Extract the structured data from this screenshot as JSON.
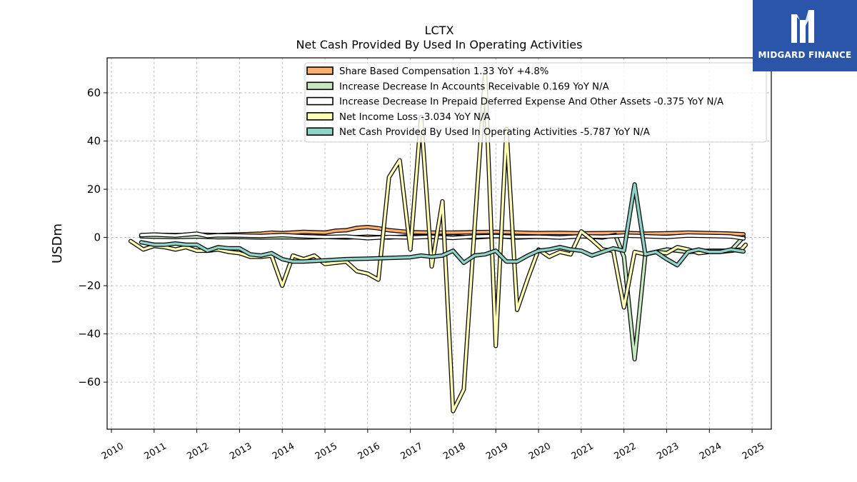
{
  "logo": {
    "text": "MIDGARD FINANCE",
    "bg_color": "#2a55a8"
  },
  "chart_data": {
    "type": "line",
    "title": "LCTX",
    "subtitle": "Net Cash Provided By Used In Operating Activities",
    "ylabel": "USDm",
    "xlabel": "",
    "xlim": [
      2009.9,
      2025.45
    ],
    "ylim": [
      -79.5,
      74.5
    ],
    "x_ticks": [
      2010,
      2011,
      2012,
      2013,
      2014,
      2015,
      2016,
      2017,
      2018,
      2019,
      2020,
      2021,
      2022,
      2023,
      2024,
      2025
    ],
    "y_ticks": [
      -60,
      -40,
      -20,
      0,
      20,
      40,
      60
    ],
    "y_tick_labels": [
      "−60",
      "−40",
      "−20",
      "0",
      "20",
      "40",
      "60"
    ],
    "grid": true,
    "legend_position": "top-right",
    "series": [
      {
        "name": "Share Based Compensation",
        "legend": "Share Based Compensation  1.33 YoY +4.8%",
        "color": "#fdae6b",
        "x": [
          2010.7,
          2011.0,
          2011.5,
          2012.0,
          2012.5,
          2013.0,
          2013.5,
          2013.75,
          2014.0,
          2014.5,
          2015.0,
          2015.25,
          2015.5,
          2015.75,
          2016.0,
          2016.25,
          2016.5,
          2016.75,
          2017.0,
          2017.5,
          2018.0,
          2018.5,
          2019.0,
          2019.5,
          2020.0,
          2020.5,
          2021.0,
          2021.5,
          2022.0,
          2022.5,
          2023.0,
          2023.5,
          2024.0,
          2024.5,
          2024.8
        ],
        "y": [
          0.9,
          1.1,
          1.0,
          1.2,
          1.0,
          1.3,
          1.6,
          2.0,
          1.8,
          2.3,
          2.0,
          2.8,
          3.0,
          4.0,
          4.3,
          3.8,
          3.0,
          2.6,
          2.2,
          2.0,
          2.0,
          2.2,
          2.3,
          2.0,
          1.8,
          1.9,
          1.7,
          1.8,
          1.9,
          1.6,
          1.7,
          2.0,
          1.8,
          1.6,
          1.33
        ]
      },
      {
        "name": "Increase Decrease In Accounts Receivable",
        "legend": "Increase Decrease In Accounts Receivable  0.169 YoY N/A",
        "color": "#c7e9c0",
        "x": [
          2010.7,
          2011.0,
          2011.5,
          2012.0,
          2012.5,
          2013.0,
          2013.5,
          2014.0,
          2014.5,
          2015.0,
          2015.5,
          2016.0,
          2016.5,
          2017.0,
          2017.5,
          2018.0,
          2018.5,
          2019.0,
          2019.5,
          2020.0,
          2020.5,
          2021.0,
          2021.5,
          2021.8,
          2022.0,
          2022.25,
          2022.5,
          2022.75,
          2023.0,
          2023.5,
          2024.0,
          2024.5,
          2024.8
        ],
        "y": [
          0.5,
          0.3,
          0.2,
          0.4,
          0.1,
          0.2,
          0.0,
          0.1,
          0.0,
          0.2,
          0.0,
          0.3,
          0.0,
          0.5,
          0.2,
          0.4,
          0.0,
          0.6,
          0.0,
          0.3,
          0.0,
          0.5,
          0.0,
          1.0,
          -8.0,
          -50.5,
          -7.0,
          -6.0,
          -5.0,
          -6.0,
          -5.5,
          -5.5,
          0.169
        ]
      },
      {
        "name": "Increase Decrease In Prepaid Deferred Expense And Other Assets",
        "legend": "Increase Decrease In Prepaid Deferred Expense And Other Assets  -0.375 YoY N/A",
        "color": "#ffffff",
        "x": [
          2010.7,
          2011.0,
          2011.5,
          2012.0,
          2012.25,
          2012.5,
          2013.0,
          2013.5,
          2014.0,
          2014.5,
          2015.0,
          2015.5,
          2016.0,
          2016.5,
          2017.0,
          2017.5,
          2018.0,
          2018.5,
          2019.0,
          2019.5,
          2020.0,
          2020.5,
          2021.0,
          2021.5,
          2022.0,
          2022.5,
          2023.0,
          2023.5,
          2024.0,
          2024.5,
          2024.8
        ],
        "y": [
          1.0,
          1.2,
          0.8,
          1.6,
          0.6,
          0.9,
          0.8,
          0.6,
          1.0,
          0.5,
          0.2,
          0.4,
          -0.3,
          0.2,
          0.0,
          0.3,
          -0.2,
          0.4,
          0.6,
          0.2,
          0.3,
          0.0,
          0.5,
          0.3,
          0.8,
          0.5,
          0.2,
          0.8,
          0.6,
          0.4,
          -0.375
        ]
      },
      {
        "name": "Net Income Loss",
        "legend": "Net Income Loss  -3.034 YoY N/A",
        "color": "#ffffb3",
        "x": [
          2010.45,
          2010.75,
          2011.0,
          2011.25,
          2011.5,
          2011.75,
          2012.0,
          2012.25,
          2012.5,
          2012.75,
          2013.0,
          2013.25,
          2013.5,
          2013.75,
          2014.0,
          2014.25,
          2014.5,
          2014.75,
          2015.0,
          2015.25,
          2015.5,
          2015.75,
          2016.0,
          2016.25,
          2016.5,
          2016.75,
          2017.0,
          2017.25,
          2017.5,
          2017.75,
          2018.0,
          2018.25,
          2018.5,
          2018.75,
          2019.0,
          2019.25,
          2019.5,
          2019.75,
          2020.0,
          2020.25,
          2020.5,
          2020.75,
          2021.0,
          2021.25,
          2021.5,
          2021.75,
          2022.0,
          2022.25,
          2022.5,
          2022.75,
          2023.0,
          2023.25,
          2023.5,
          2023.75,
          2024.0,
          2024.25,
          2024.5,
          2024.75,
          2024.85
        ],
        "y": [
          -1.5,
          -5.0,
          -3.5,
          -4.0,
          -5.0,
          -4.0,
          -5.5,
          -5.5,
          -5.0,
          -6.0,
          -6.5,
          -8.0,
          -8.0,
          -7.5,
          -20.0,
          -7.5,
          -9.0,
          -7.5,
          -11.0,
          -10.5,
          -10.0,
          -14.0,
          -15.0,
          -17.5,
          25.0,
          32.0,
          -5.0,
          50.0,
          -12.0,
          15.0,
          -72.0,
          -63.0,
          3.0,
          68.0,
          -45.0,
          45.0,
          -30.0,
          -17.0,
          -5.0,
          -8.0,
          -6.0,
          -7.0,
          2.5,
          -1.0,
          -5.0,
          -5.5,
          -29.0,
          -6.0,
          -7.0,
          -6.0,
          -6.5,
          -4.0,
          -5.0,
          -6.5,
          -6.0,
          -6.0,
          -5.5,
          -5.0,
          -3.034
        ]
      },
      {
        "name": "Net Cash Provided By Used In Operating Activities",
        "legend": "Net Cash Provided By Used In Operating Activities  -5.787 YoY N/A",
        "color": "#8dd3c7",
        "x": [
          2010.7,
          2011.0,
          2011.25,
          2011.5,
          2011.75,
          2012.0,
          2012.25,
          2012.5,
          2012.75,
          2013.0,
          2013.25,
          2013.5,
          2013.75,
          2014.0,
          2014.25,
          2014.5,
          2015.0,
          2015.5,
          2016.0,
          2016.5,
          2017.0,
          2017.25,
          2017.5,
          2017.75,
          2018.0,
          2018.25,
          2018.5,
          2018.75,
          2019.0,
          2019.25,
          2019.5,
          2019.75,
          2020.0,
          2020.25,
          2020.5,
          2020.75,
          2021.0,
          2021.25,
          2021.5,
          2021.75,
          2022.0,
          2022.25,
          2022.5,
          2022.75,
          2023.0,
          2023.25,
          2023.5,
          2023.75,
          2024.0,
          2024.25,
          2024.5,
          2024.8
        ],
        "y": [
          -2.0,
          -3.0,
          -3.0,
          -2.5,
          -3.0,
          -3.0,
          -5.5,
          -4.0,
          -4.5,
          -4.5,
          -7.0,
          -7.5,
          -6.5,
          -9.0,
          -10.0,
          -10.0,
          -9.5,
          -9.0,
          -8.8,
          -8.5,
          -8.2,
          -7.5,
          -8.0,
          -7.5,
          -5.5,
          -10.5,
          -7.5,
          -7.0,
          -5.5,
          -10.0,
          -10.0,
          -7.5,
          -5.5,
          -5.0,
          -4.0,
          -5.0,
          -5.5,
          -7.5,
          -6.0,
          -4.5,
          -5.5,
          22.0,
          -7.0,
          -6.0,
          -9.0,
          -11.5,
          -6.0,
          -5.0,
          -6.0,
          -6.0,
          -5.0,
          -5.787
        ]
      }
    ]
  }
}
